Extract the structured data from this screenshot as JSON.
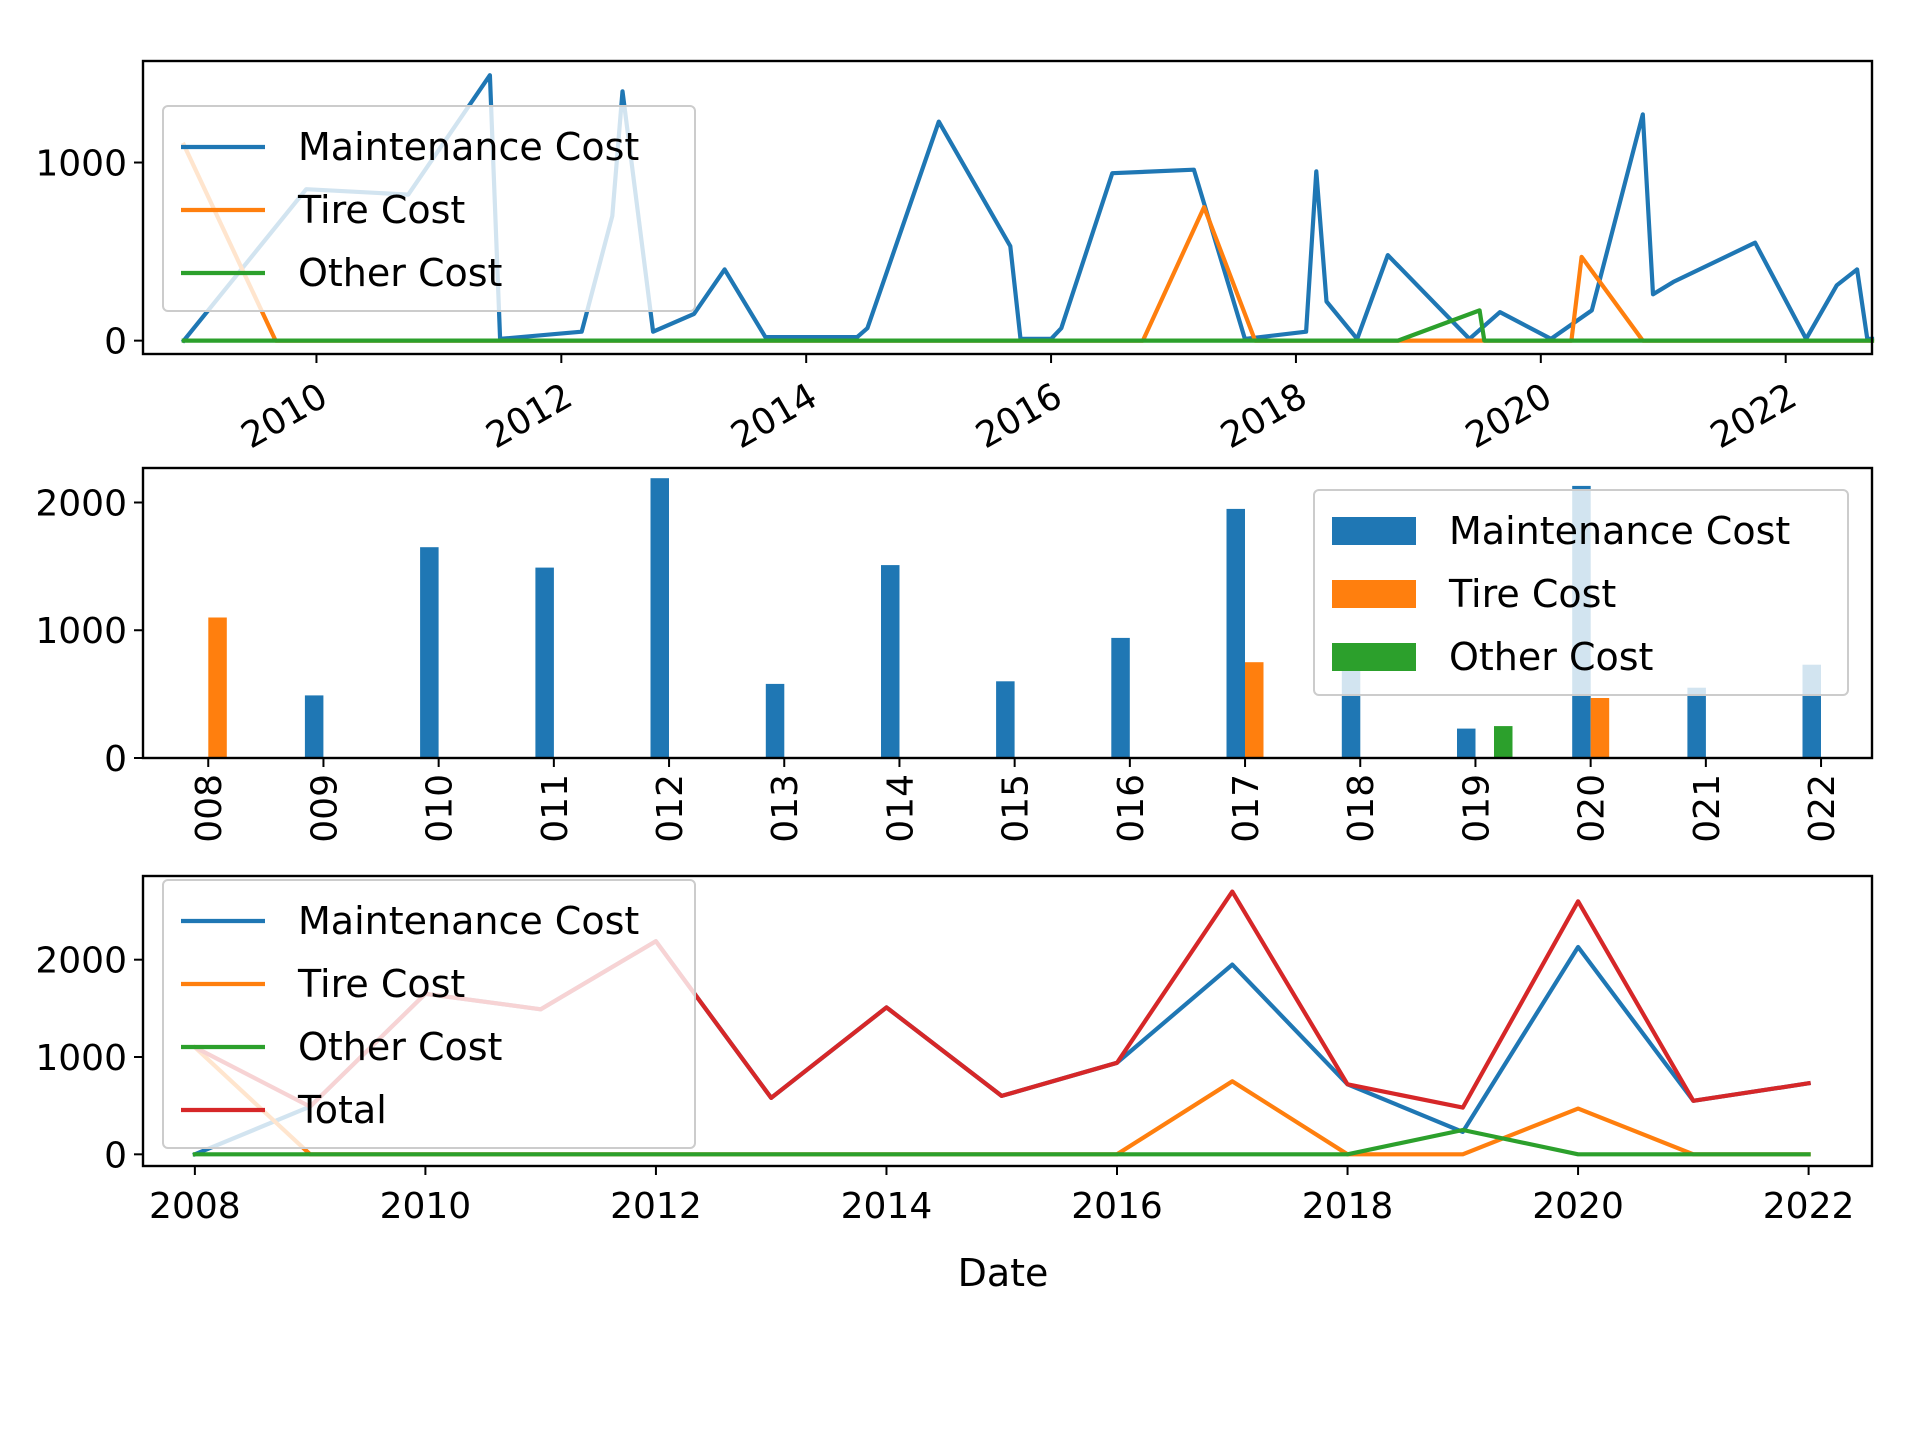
{
  "colors": {
    "maintenance": "#1f77b4",
    "tire": "#ff7f0e",
    "other": "#2ca02c",
    "total": "#d62728"
  },
  "chart_data": [
    {
      "type": "line",
      "title": "",
      "xlabel": "",
      "ylabel": "",
      "x_axis": "date",
      "xlim": [
        "2008-08-01",
        "2022-09-15"
      ],
      "ylim": [
        -75,
        1570
      ],
      "xtick_labels": [
        "2010",
        "2012",
        "2014",
        "2016",
        "2018",
        "2020",
        "2022"
      ],
      "ytick_labels": [
        "0",
        "1000"
      ],
      "legend_position": "upper-left",
      "series": [
        {
          "name": "Maintenance Cost",
          "color_key": "maintenance",
          "points": [
            [
              "2008-12-01",
              0
            ],
            [
              "2009-12-01",
              850
            ],
            [
              "2010-10-01",
              820
            ],
            [
              "2011-06-01",
              1490
            ],
            [
              "2011-07-01",
              10
            ],
            [
              "2012-03-01",
              50
            ],
            [
              "2012-06-01",
              700
            ],
            [
              "2012-07-01",
              1400
            ],
            [
              "2012-10-01",
              50
            ],
            [
              "2013-02-01",
              150
            ],
            [
              "2013-05-01",
              400
            ],
            [
              "2013-09-01",
              20
            ],
            [
              "2014-06-01",
              20
            ],
            [
              "2014-07-01",
              70
            ],
            [
              "2015-02-01",
              1230
            ],
            [
              "2015-09-01",
              530
            ],
            [
              "2015-10-01",
              10
            ],
            [
              "2016-01-01",
              10
            ],
            [
              "2016-02-01",
              70
            ],
            [
              "2016-07-01",
              940
            ],
            [
              "2017-03-01",
              960
            ],
            [
              "2017-08-01",
              10
            ],
            [
              "2018-02-01",
              50
            ],
            [
              "2018-03-01",
              950
            ],
            [
              "2018-04-01",
              220
            ],
            [
              "2018-07-01",
              10
            ],
            [
              "2018-10-01",
              480
            ],
            [
              "2019-06-01",
              10
            ],
            [
              "2019-09-01",
              160
            ],
            [
              "2020-02-01",
              10
            ],
            [
              "2020-06-01",
              170
            ],
            [
              "2020-11-01",
              1270
            ],
            [
              "2020-12-01",
              260
            ],
            [
              "2021-02-01",
              330
            ],
            [
              "2021-10-01",
              550
            ],
            [
              "2022-03-01",
              10
            ],
            [
              "2022-06-01",
              310
            ],
            [
              "2022-08-01",
              400
            ],
            [
              "2022-09-01",
              10
            ],
            [
              "2022-09-15",
              10
            ]
          ]
        },
        {
          "name": "Tire Cost",
          "color_key": "tire",
          "points": [
            [
              "2008-12-01",
              1100
            ],
            [
              "2009-09-01",
              0
            ],
            [
              "2016-10-01",
              0
            ],
            [
              "2017-04-01",
              750
            ],
            [
              "2017-09-01",
              0
            ],
            [
              "2020-04-01",
              0
            ],
            [
              "2020-05-01",
              470
            ],
            [
              "2020-11-01",
              0
            ],
            [
              "2022-09-15",
              0
            ]
          ]
        },
        {
          "name": "Other Cost",
          "color_key": "other",
          "points": [
            [
              "2008-12-01",
              0
            ],
            [
              "2018-11-01",
              0
            ],
            [
              "2019-07-01",
              170
            ],
            [
              "2019-07-15",
              0
            ],
            [
              "2019-12-01",
              0
            ],
            [
              "2022-09-15",
              0
            ]
          ]
        }
      ]
    },
    {
      "type": "bar",
      "title": "",
      "xlabel": "",
      "ylabel": "",
      "ylim": [
        0,
        2270
      ],
      "categories": [
        "2008",
        "2009",
        "2010",
        "2011",
        "2012",
        "2013",
        "2014",
        "2015",
        "2016",
        "2017",
        "2018",
        "2019",
        "2020",
        "2021",
        "2022"
      ],
      "xtick_labels": [
        "008",
        "009",
        "010",
        "011",
        "012",
        "013",
        "014",
        "015",
        "016",
        "017",
        "018",
        "019",
        "020",
        "021",
        "022"
      ],
      "ytick_labels": [
        "0",
        "1000",
        "2000"
      ],
      "legend_position": "upper-right",
      "series": [
        {
          "name": "Maintenance Cost",
          "color_key": "maintenance",
          "values": [
            0,
            490,
            1650,
            1490,
            2190,
            580,
            1510,
            600,
            940,
            1950,
            720,
            230,
            2130,
            550,
            730
          ]
        },
        {
          "name": "Tire Cost",
          "color_key": "tire",
          "values": [
            1100,
            0,
            0,
            0,
            0,
            0,
            0,
            0,
            0,
            750,
            0,
            0,
            470,
            0,
            0
          ]
        },
        {
          "name": "Other Cost",
          "color_key": "other",
          "values": [
            0,
            0,
            0,
            0,
            0,
            0,
            0,
            0,
            0,
            0,
            0,
            250,
            0,
            0,
            0
          ]
        }
      ]
    },
    {
      "type": "line",
      "title": "",
      "xlabel": "Date",
      "ylabel": "",
      "xlim": [
        2007.55,
        2022.55
      ],
      "ylim": [
        -120,
        2860
      ],
      "xtick_labels": [
        "2008",
        "2010",
        "2012",
        "2014",
        "2016",
        "2018",
        "2020",
        "2022"
      ],
      "ytick_labels": [
        "0",
        "1000",
        "2000"
      ],
      "legend_position": "upper-left",
      "x": [
        2008,
        2009,
        2010,
        2011,
        2012,
        2013,
        2014,
        2015,
        2016,
        2017,
        2018,
        2019,
        2020,
        2021,
        2022
      ],
      "series": [
        {
          "name": "Maintenance Cost",
          "color_key": "maintenance",
          "values": [
            0,
            490,
            1650,
            1490,
            2190,
            580,
            1510,
            600,
            940,
            1950,
            720,
            230,
            2130,
            550,
            730
          ]
        },
        {
          "name": "Tire Cost",
          "color_key": "tire",
          "values": [
            1100,
            0,
            0,
            0,
            0,
            0,
            0,
            0,
            0,
            750,
            0,
            0,
            470,
            0,
            0
          ]
        },
        {
          "name": "Other Cost",
          "color_key": "other",
          "values": [
            0,
            0,
            0,
            0,
            0,
            0,
            0,
            0,
            0,
            0,
            0,
            250,
            0,
            0,
            0
          ]
        },
        {
          "name": "Total",
          "color_key": "total",
          "values": [
            1100,
            490,
            1650,
            1490,
            2190,
            580,
            1510,
            600,
            940,
            2700,
            720,
            480,
            2600,
            550,
            730
          ]
        }
      ]
    }
  ]
}
